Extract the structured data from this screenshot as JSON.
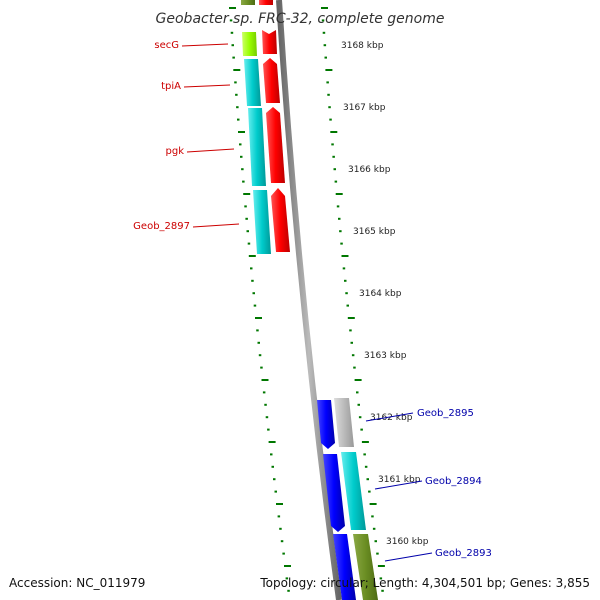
{
  "title": "Geobacter sp. FRC-32, complete genome",
  "footer": {
    "accession": "Accession: NC_011979",
    "summary": "Topology: circular; Length: 4,304,501 bp; Genes: 3,855"
  },
  "scale_labels": [
    "3168 kbp",
    "3167 kbp",
    "3166 kbp",
    "3165 kbp",
    "3164 kbp",
    "3163 kbp",
    "3162 kbp",
    "3161 kbp",
    "3160 kbp"
  ],
  "genes_left": [
    "secG",
    "tpiA",
    "pgk",
    "Geob_2897"
  ],
  "genes_right": [
    "Geob_2895",
    "Geob_2894",
    "Geob_2893"
  ],
  "colors": {
    "red_gene": "#ff0000",
    "cyan_gene": "#00cccc",
    "lime_gene": "#99ff00",
    "blue_gene": "#0000ff",
    "gray_gene": "#bbbbbb",
    "olive_gene": "#6b8e23",
    "tick_green": "#007700",
    "backbone": "#888888"
  }
}
